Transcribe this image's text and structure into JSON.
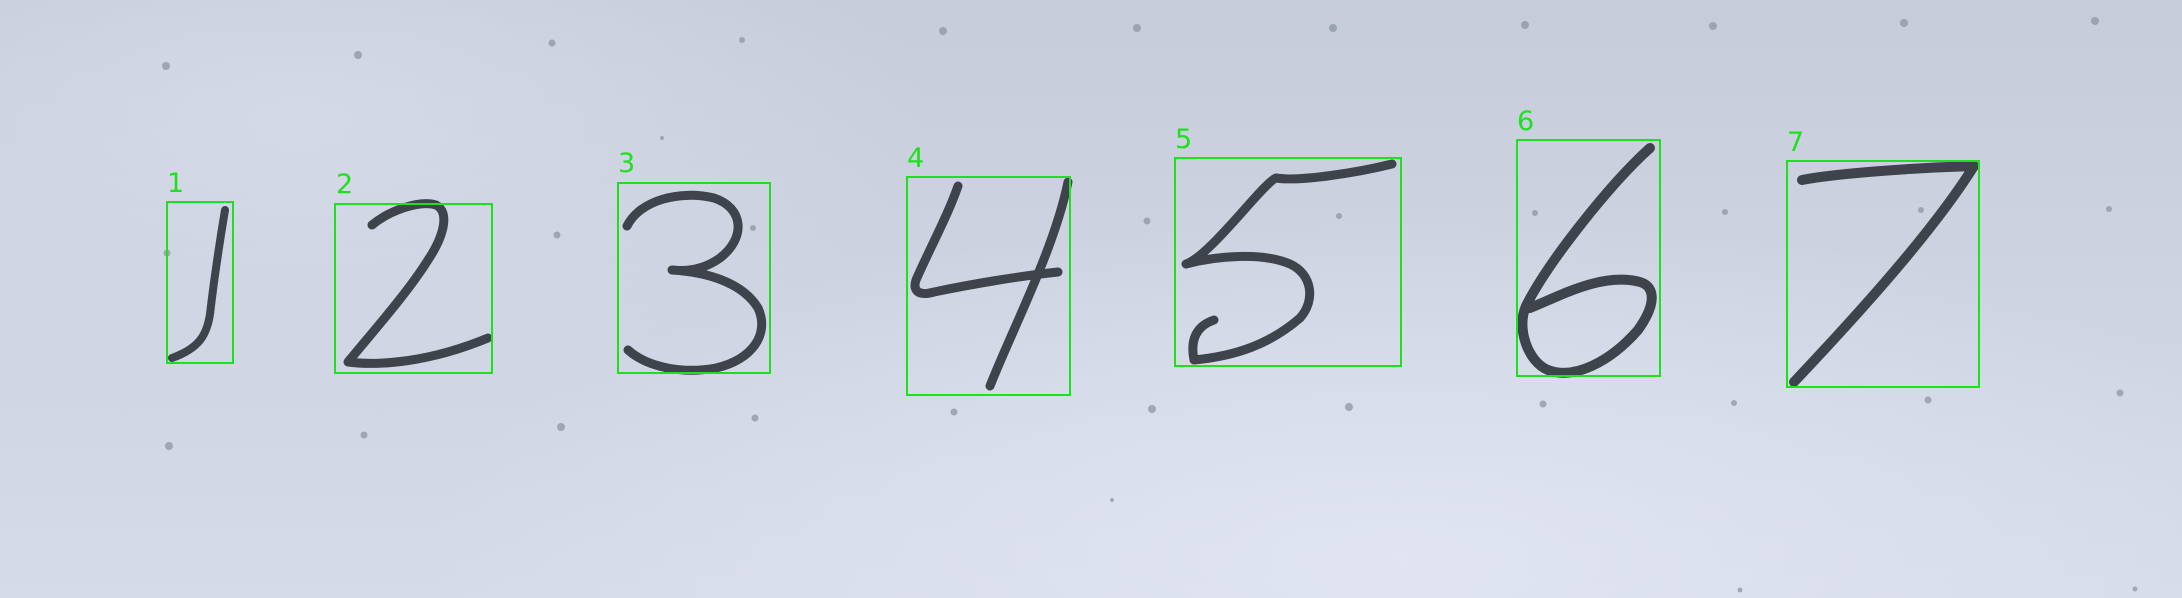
{
  "image": {
    "description_free": true
  },
  "detections": [
    {
      "label": "1",
      "digit": "1"
    },
    {
      "label": "2",
      "digit": "2"
    },
    {
      "label": "3",
      "digit": "3"
    },
    {
      "label": "4",
      "digit": "4"
    },
    {
      "label": "5",
      "digit": "5"
    },
    {
      "label": "6",
      "digit": "6"
    },
    {
      "label": "7",
      "digit": "7"
    }
  ],
  "colors": {
    "box": "#1fe01f",
    "ink": "#3f434c",
    "paper": "#cdd3e1"
  }
}
